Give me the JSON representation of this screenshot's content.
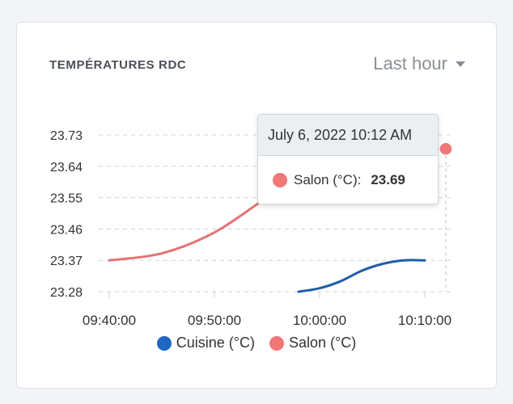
{
  "card": {
    "title": "TEMPÉRATURES RDC",
    "range_label": "Last hour"
  },
  "chart_data": {
    "type": "line",
    "title": "TEMPÉRATURES RDC",
    "x_ticks": [
      "09:40:00",
      "09:50:00",
      "10:00:00",
      "10:10:00"
    ],
    "y_ticks": [
      "23.73",
      "23.64",
      "23.55",
      "23.46",
      "23.37",
      "23.28"
    ],
    "ylim": [
      23.28,
      23.73
    ],
    "grid": true,
    "legend_position": "bottom",
    "series": [
      {
        "name": "Salon (°C)",
        "color": "#e57373",
        "x": [
          "09:40:00",
          "09:45:00",
          "09:50:00",
          "09:55:00",
          "10:00:00",
          "10:05:00",
          "10:10:00",
          "10:12:00"
        ],
        "y": [
          23.37,
          23.39,
          23.45,
          23.55,
          23.64,
          23.69,
          23.69,
          23.69
        ]
      },
      {
        "name": "Cuisine (°C)",
        "color": "#1f5ea8",
        "x": [
          "09:58:00",
          "10:00:00",
          "10:02:00",
          "10:04:00",
          "10:06:00",
          "10:08:00",
          "10:10:00"
        ],
        "y": [
          23.28,
          23.29,
          23.31,
          23.34,
          23.36,
          23.37,
          23.37
        ]
      }
    ]
  },
  "tooltip": {
    "date": "July 6, 2022 10:12 AM",
    "series_label": "Salon (°C):",
    "value": "23.69",
    "dot_color": "#f07878"
  },
  "legend": [
    {
      "label": "Cuisine (°C)",
      "color": "#1f66c5"
    },
    {
      "label": "Salon (°C)",
      "color": "#f07878"
    }
  ]
}
